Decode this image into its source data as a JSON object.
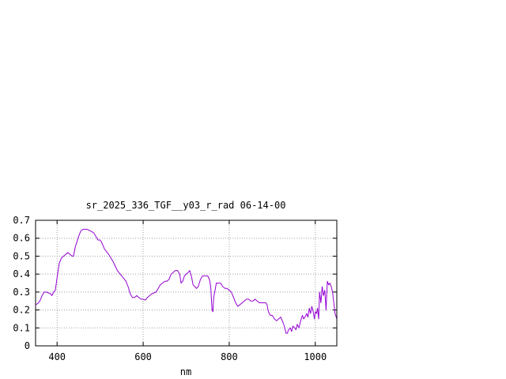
{
  "chart_data": {
    "type": "line",
    "title": "sr_2025_336_TGF__y03_r_rad 06-14-00",
    "xlabel": "nm",
    "ylabel": "",
    "xlim": [
      350,
      1050
    ],
    "ylim": [
      0,
      0.7
    ],
    "x_ticks": [
      "400",
      "600",
      "800",
      "1000"
    ],
    "y_ticks": [
      "0",
      "0.1",
      "0.2",
      "0.3",
      "0.4",
      "0.5",
      "0.6",
      "0.7"
    ],
    "grid": true,
    "legend": "none",
    "colors": {
      "line": "#9400d3",
      "grid": "#a0a0a0",
      "axes": "#000000"
    },
    "series": [
      {
        "values": [
          [
            350,
            0.23
          ],
          [
            355,
            0.235
          ],
          [
            360,
            0.25
          ],
          [
            365,
            0.28
          ],
          [
            370,
            0.3
          ],
          [
            375,
            0.3
          ],
          [
            380,
            0.295
          ],
          [
            385,
            0.29
          ],
          [
            388,
            0.28
          ],
          [
            392,
            0.3
          ],
          [
            396,
            0.31
          ],
          [
            400,
            0.38
          ],
          [
            405,
            0.46
          ],
          [
            410,
            0.49
          ],
          [
            415,
            0.5
          ],
          [
            420,
            0.51
          ],
          [
            425,
            0.52
          ],
          [
            430,
            0.51
          ],
          [
            435,
            0.5
          ],
          [
            438,
            0.5
          ],
          [
            442,
            0.55
          ],
          [
            446,
            0.58
          ],
          [
            450,
            0.61
          ],
          [
            455,
            0.64
          ],
          [
            460,
            0.65
          ],
          [
            470,
            0.65
          ],
          [
            478,
            0.64
          ],
          [
            485,
            0.63
          ],
          [
            490,
            0.61
          ],
          [
            495,
            0.59
          ],
          [
            500,
            0.59
          ],
          [
            503,
            0.58
          ],
          [
            510,
            0.54
          ],
          [
            520,
            0.51
          ],
          [
            530,
            0.47
          ],
          [
            540,
            0.42
          ],
          [
            550,
            0.39
          ],
          [
            560,
            0.36
          ],
          [
            565,
            0.33
          ],
          [
            570,
            0.29
          ],
          [
            575,
            0.27
          ],
          [
            580,
            0.27
          ],
          [
            585,
            0.28
          ],
          [
            590,
            0.27
          ],
          [
            595,
            0.26
          ],
          [
            600,
            0.26
          ],
          [
            605,
            0.255
          ],
          [
            610,
            0.27
          ],
          [
            620,
            0.29
          ],
          [
            630,
            0.3
          ],
          [
            640,
            0.34
          ],
          [
            645,
            0.35
          ],
          [
            650,
            0.36
          ],
          [
            655,
            0.36
          ],
          [
            660,
            0.37
          ],
          [
            665,
            0.4
          ],
          [
            670,
            0.41
          ],
          [
            675,
            0.42
          ],
          [
            680,
            0.42
          ],
          [
            685,
            0.4
          ],
          [
            688,
            0.35
          ],
          [
            692,
            0.36
          ],
          [
            696,
            0.39
          ],
          [
            700,
            0.4
          ],
          [
            705,
            0.41
          ],
          [
            708,
            0.42
          ],
          [
            712,
            0.39
          ],
          [
            716,
            0.34
          ],
          [
            720,
            0.33
          ],
          [
            724,
            0.32
          ],
          [
            728,
            0.33
          ],
          [
            733,
            0.37
          ],
          [
            738,
            0.39
          ],
          [
            745,
            0.39
          ],
          [
            750,
            0.39
          ],
          [
            754,
            0.37
          ],
          [
            757,
            0.33
          ],
          [
            760,
            0.2
          ],
          [
            762,
            0.19
          ],
          [
            764,
            0.27
          ],
          [
            767,
            0.31
          ],
          [
            770,
            0.35
          ],
          [
            775,
            0.35
          ],
          [
            780,
            0.35
          ],
          [
            785,
            0.33
          ],
          [
            790,
            0.32
          ],
          [
            795,
            0.32
          ],
          [
            800,
            0.31
          ],
          [
            805,
            0.3
          ],
          [
            810,
            0.27
          ],
          [
            815,
            0.24
          ],
          [
            820,
            0.22
          ],
          [
            825,
            0.23
          ],
          [
            830,
            0.24
          ],
          [
            835,
            0.25
          ],
          [
            840,
            0.26
          ],
          [
            845,
            0.26
          ],
          [
            850,
            0.25
          ],
          [
            855,
            0.25
          ],
          [
            860,
            0.26
          ],
          [
            865,
            0.25
          ],
          [
            870,
            0.24
          ],
          [
            875,
            0.24
          ],
          [
            880,
            0.24
          ],
          [
            885,
            0.24
          ],
          [
            888,
            0.23
          ],
          [
            890,
            0.2
          ],
          [
            893,
            0.18
          ],
          [
            896,
            0.17
          ],
          [
            900,
            0.17
          ],
          [
            905,
            0.15
          ],
          [
            910,
            0.14
          ],
          [
            915,
            0.15
          ],
          [
            920,
            0.16
          ],
          [
            925,
            0.13
          ],
          [
            928,
            0.11
          ],
          [
            932,
            0.07
          ],
          [
            935,
            0.07
          ],
          [
            938,
            0.09
          ],
          [
            942,
            0.1
          ],
          [
            945,
            0.08
          ],
          [
            948,
            0.11
          ],
          [
            952,
            0.1
          ],
          [
            955,
            0.09
          ],
          [
            958,
            0.12
          ],
          [
            962,
            0.1
          ],
          [
            966,
            0.14
          ],
          [
            970,
            0.17
          ],
          [
            973,
            0.15
          ],
          [
            976,
            0.16
          ],
          [
            980,
            0.18
          ],
          [
            983,
            0.16
          ],
          [
            986,
            0.21
          ],
          [
            989,
            0.18
          ],
          [
            992,
            0.22
          ],
          [
            995,
            0.19
          ],
          [
            998,
            0.15
          ],
          [
            1000,
            0.19
          ],
          [
            1003,
            0.18
          ],
          [
            1005,
            0.21
          ],
          [
            1008,
            0.15
          ],
          [
            1010,
            0.3
          ],
          [
            1013,
            0.24
          ],
          [
            1016,
            0.33
          ],
          [
            1019,
            0.28
          ],
          [
            1022,
            0.31
          ],
          [
            1025,
            0.2
          ],
          [
            1028,
            0.36
          ],
          [
            1031,
            0.34
          ],
          [
            1034,
            0.35
          ],
          [
            1037,
            0.33
          ],
          [
            1040,
            0.3
          ],
          [
            1043,
            0.24
          ],
          [
            1046,
            0.18
          ],
          [
            1050,
            0.15
          ]
        ]
      }
    ]
  }
}
